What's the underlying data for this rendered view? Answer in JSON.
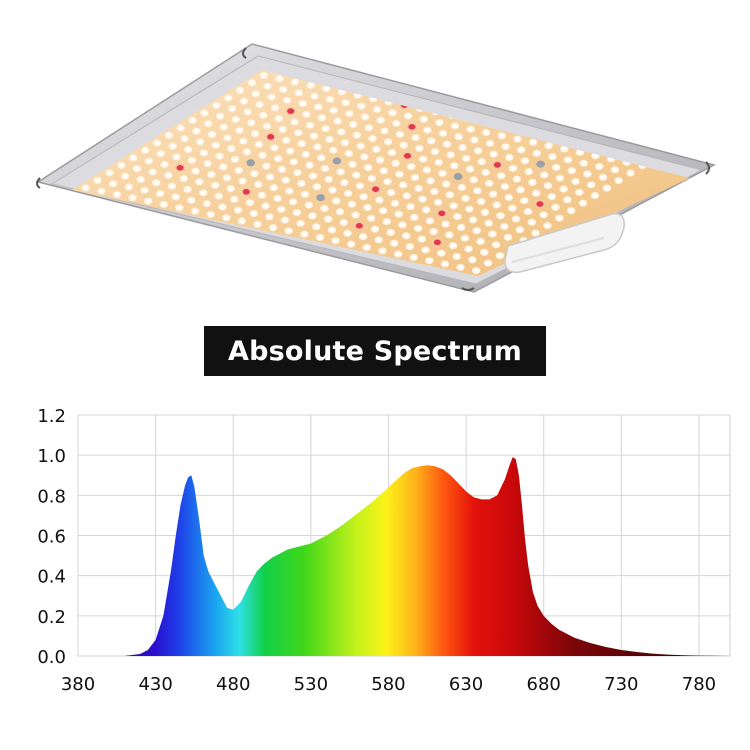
{
  "title": "Absolute Spectrum",
  "product": {
    "icon": "led-grow-light-panel-icon"
  },
  "chart_data": {
    "type": "area",
    "title": "Absolute Spectrum",
    "xlabel": "",
    "ylabel": "",
    "xlim": [
      380,
      800
    ],
    "ylim": [
      0,
      1.2
    ],
    "x_ticks": [
      380,
      430,
      480,
      530,
      580,
      630,
      680,
      730,
      780
    ],
    "x_tick_labels": [
      "380",
      "430",
      "480",
      "530",
      "580",
      "630",
      "680",
      "730",
      "780"
    ],
    "y_ticks": [
      0,
      0.2,
      0.4,
      0.6,
      0.8,
      1.0,
      1.2
    ],
    "y_tick_labels": [
      "0.0",
      "0.2",
      "0.4",
      "0.6",
      "0.8",
      "1.0",
      "1.2"
    ],
    "grid": true,
    "fill": "wavelength-gradient",
    "series": [
      {
        "x": [
          410,
          420,
          425,
          430,
          435,
          440,
          443,
          446,
          449,
          451,
          453,
          455,
          458,
          461,
          464,
          468,
          472,
          476,
          480,
          485,
          490,
          495,
          500,
          505,
          510,
          515,
          520,
          530,
          540,
          550,
          560,
          570,
          580,
          590,
          595,
          600,
          605,
          610,
          615,
          620,
          625,
          630,
          635,
          640,
          645,
          650,
          655,
          658,
          660,
          662,
          664,
          666,
          668,
          670,
          673,
          676,
          680,
          685,
          690,
          700,
          710,
          720,
          730,
          740,
          750,
          760,
          770,
          780,
          790,
          800
        ],
        "y": [
          0.0,
          0.01,
          0.03,
          0.08,
          0.2,
          0.43,
          0.6,
          0.75,
          0.85,
          0.89,
          0.9,
          0.84,
          0.68,
          0.5,
          0.42,
          0.36,
          0.3,
          0.24,
          0.23,
          0.27,
          0.35,
          0.42,
          0.46,
          0.49,
          0.51,
          0.53,
          0.54,
          0.56,
          0.6,
          0.65,
          0.71,
          0.77,
          0.84,
          0.91,
          0.935,
          0.945,
          0.95,
          0.945,
          0.93,
          0.9,
          0.86,
          0.82,
          0.79,
          0.78,
          0.78,
          0.8,
          0.88,
          0.95,
          0.99,
          0.98,
          0.9,
          0.75,
          0.58,
          0.45,
          0.32,
          0.25,
          0.2,
          0.16,
          0.13,
          0.09,
          0.065,
          0.045,
          0.03,
          0.02,
          0.012,
          0.007,
          0.004,
          0.002,
          0.001,
          0.0
        ]
      }
    ]
  }
}
